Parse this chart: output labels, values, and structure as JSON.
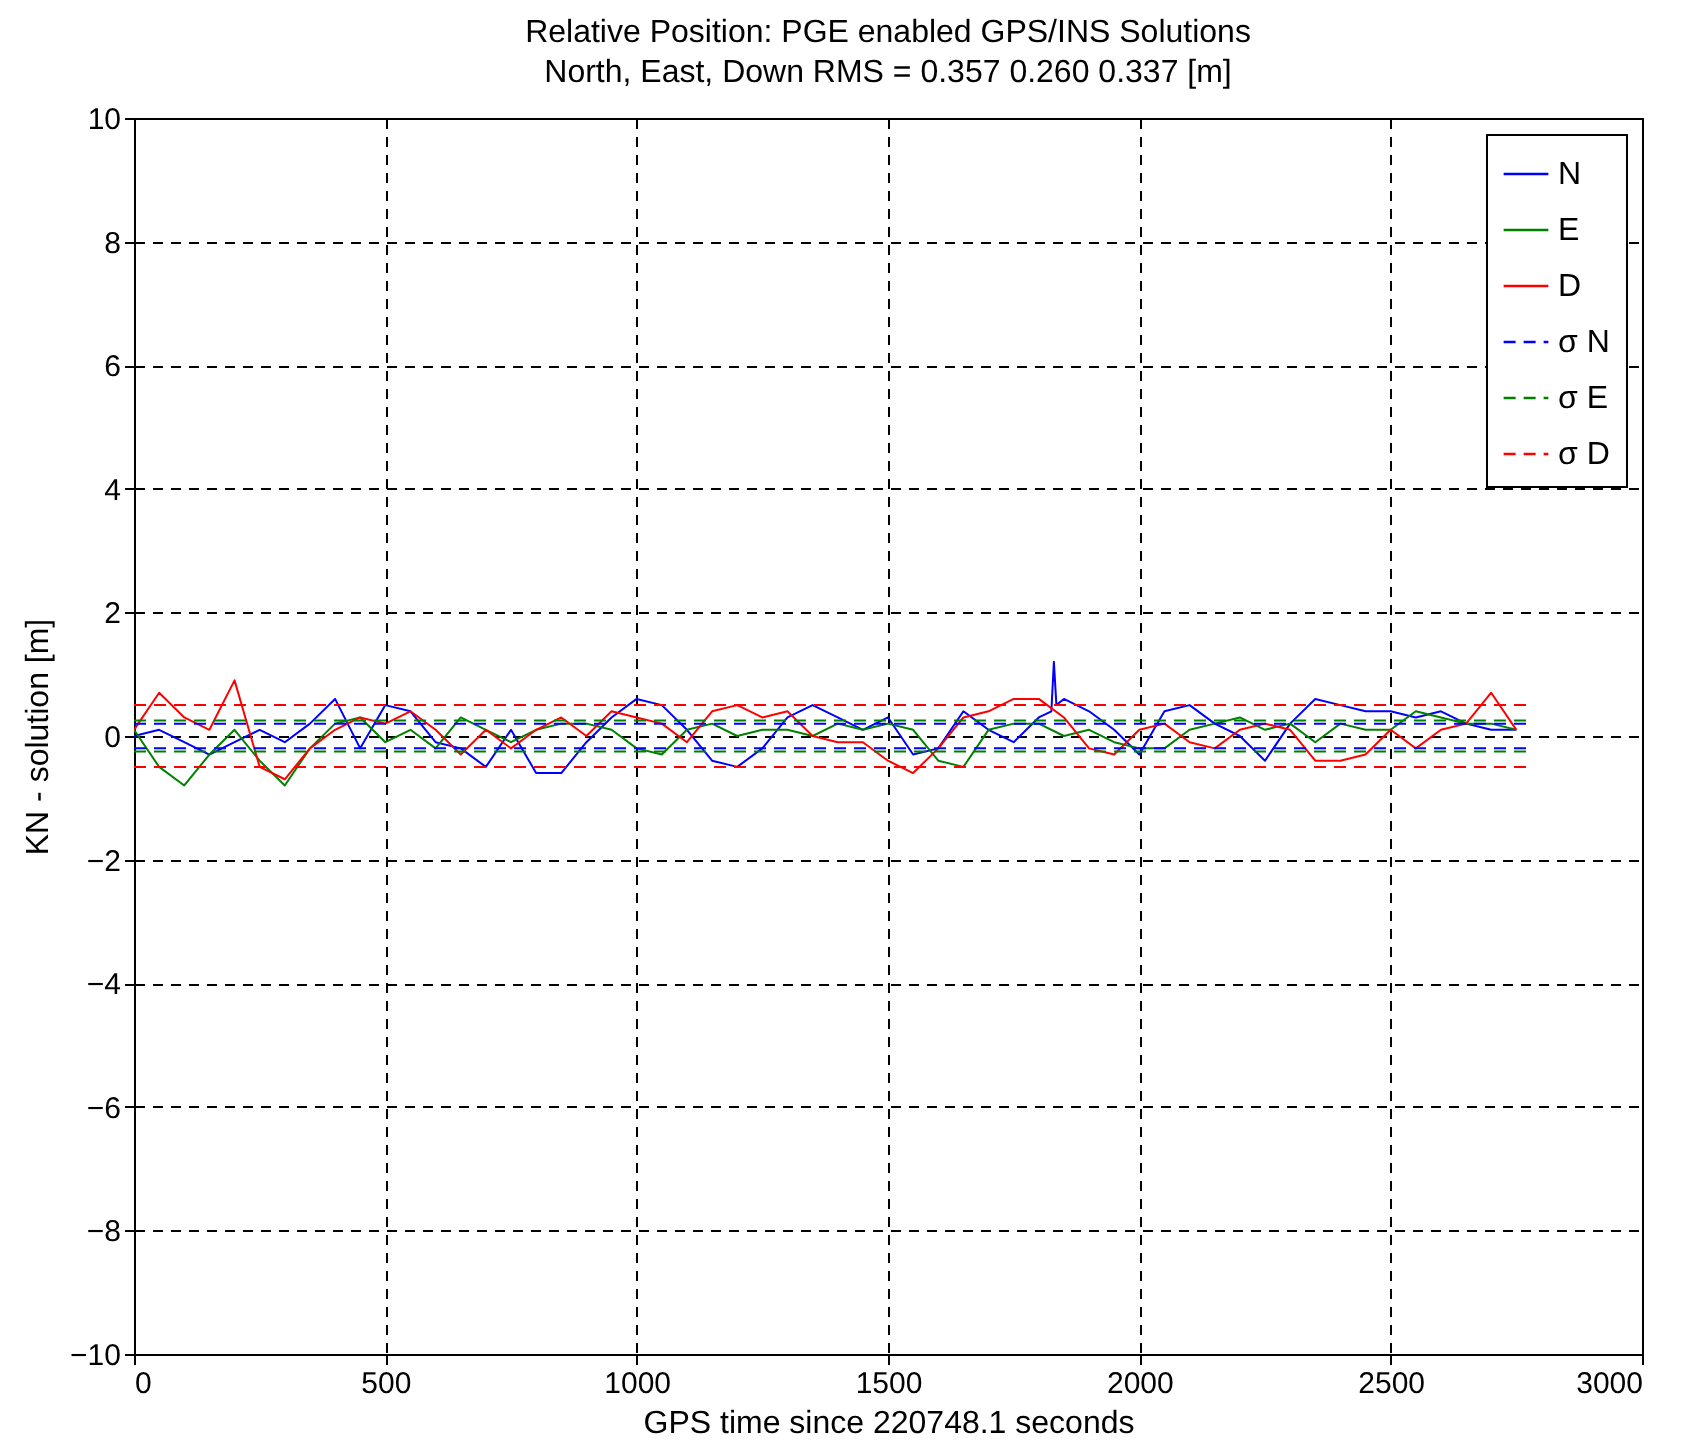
{
  "chart_data": {
    "type": "line",
    "title": "Relative Position: PGE enabled GPS/INS Solutions",
    "subtitle": "North, East, Down RMS = 0.357 0.260 0.337 [m]",
    "xlabel": "GPS time since 220748.1 seconds",
    "ylabel": "KN - solution [m]",
    "x": [
      0,
      50,
      100,
      150,
      200,
      250,
      300,
      350,
      400,
      450,
      500,
      550,
      600,
      650,
      700,
      750,
      800,
      850,
      900,
      950,
      1000,
      1050,
      1100,
      1150,
      1200,
      1250,
      1300,
      1350,
      1400,
      1450,
      1500,
      1550,
      1600,
      1650,
      1700,
      1750,
      1800,
      1850,
      1900,
      1950,
      2000,
      2050,
      2100,
      2150,
      2200,
      2250,
      2300,
      2350,
      2400,
      2450,
      2500,
      2550,
      2600,
      2650,
      2700,
      2750
    ],
    "series": [
      {
        "name": "N",
        "color": "#0000ff",
        "x": [
          0,
          50,
          100,
          150,
          200,
          250,
          300,
          350,
          400,
          450,
          500,
          550,
          600,
          650,
          700,
          750,
          800,
          850,
          900,
          950,
          1000,
          1050,
          1100,
          1150,
          1200,
          1250,
          1300,
          1350,
          1400,
          1450,
          1500,
          1550,
          1600,
          1650,
          1700,
          1750,
          1800,
          1825,
          1830,
          1835,
          1850,
          1900,
          1950,
          2000,
          2050,
          2100,
          2150,
          2200,
          2250,
          2300,
          2350,
          2400,
          2450,
          2500,
          2550,
          2600,
          2650,
          2700,
          2750
        ],
        "values": [
          0,
          0.1,
          -0.1,
          -0.3,
          -0.1,
          0.1,
          -0.1,
          0.2,
          0.6,
          -0.2,
          0.5,
          0.4,
          -0.1,
          -0.2,
          -0.5,
          0.1,
          -0.6,
          -0.6,
          -0.1,
          0.3,
          0.6,
          0.5,
          0.1,
          -0.4,
          -0.5,
          -0.2,
          0.3,
          0.5,
          0.3,
          0.1,
          0.3,
          -0.3,
          -0.2,
          0.4,
          0.1,
          -0.1,
          0.3,
          0.4,
          1.2,
          0.5,
          0.6,
          0.4,
          0.1,
          -0.3,
          0.4,
          0.5,
          0.2,
          0,
          -0.4,
          0.2,
          0.6,
          0.5,
          0.4,
          0.4,
          0.3,
          0.4,
          0.2,
          0.1,
          0.1
        ]
      },
      {
        "name": "E",
        "color": "#008000",
        "values": [
          0.1,
          -0.5,
          -0.8,
          -0.3,
          0.1,
          -0.4,
          -0.8,
          -0.2,
          0.2,
          0.3,
          -0.1,
          0.1,
          -0.2,
          0.3,
          0.1,
          -0.1,
          0.1,
          0.2,
          0.2,
          0.1,
          -0.2,
          -0.3,
          0.1,
          0.2,
          0,
          0.1,
          0.1,
          0,
          0.2,
          0.1,
          0.2,
          0.1,
          -0.4,
          -0.5,
          0.1,
          0.2,
          0.2,
          0,
          0.1,
          -0.1,
          -0.2,
          -0.2,
          0.1,
          0.2,
          0.3,
          0.1,
          0.2,
          -0.1,
          0.2,
          0.1,
          0.1,
          0.4,
          0.3,
          0.2,
          0.2,
          0.1
        ]
      },
      {
        "name": "D",
        "color": "#ff0000",
        "values": [
          0.1,
          0.7,
          0.3,
          0.1,
          0.9,
          -0.5,
          -0.7,
          -0.2,
          0.1,
          0.3,
          0.2,
          0.4,
          0.1,
          -0.3,
          0.1,
          -0.2,
          0.1,
          0.3,
          0,
          0.4,
          0.3,
          0.2,
          -0.1,
          0.4,
          0.5,
          0.3,
          0.4,
          0,
          -0.1,
          -0.1,
          -0.4,
          -0.6,
          -0.2,
          0.3,
          0.4,
          0.6,
          0.6,
          0.3,
          -0.2,
          -0.3,
          0.1,
          0.2,
          -0.1,
          -0.2,
          0.1,
          0.2,
          0.1,
          -0.4,
          -0.4,
          -0.3,
          0.1,
          -0.2,
          0.1,
          0.2,
          0.7,
          0.1
        ]
      },
      {
        "name": "σ N",
        "color": "#0000ff",
        "line_style": "dashed",
        "x": [
          0,
          2770
        ],
        "values": [
          0.2,
          0.2
        ]
      },
      {
        "color": "#0000ff",
        "line_style": "dashed",
        "x": [
          0,
          2770
        ],
        "values": [
          -0.2,
          -0.2
        ]
      },
      {
        "name": "σ E",
        "color": "#008000",
        "line_style": "dashed",
        "x": [
          0,
          2770
        ],
        "values": [
          0.25,
          0.25
        ]
      },
      {
        "color": "#008000",
        "line_style": "dashed",
        "x": [
          0,
          2770
        ],
        "values": [
          -0.25,
          -0.25
        ]
      },
      {
        "name": "σ D",
        "color": "#ff0000",
        "line_style": "dashed",
        "x": [
          0,
          2770
        ],
        "values": [
          0.5,
          0.5
        ]
      },
      {
        "color": "#ff0000",
        "line_style": "dashed",
        "x": [
          0,
          2770
        ],
        "values": [
          -0.5,
          -0.5
        ]
      }
    ],
    "xlim": [
      0,
      3000
    ],
    "xticks": [
      0,
      500,
      1000,
      1500,
      2000,
      2500,
      3000
    ],
    "ylim": [
      -10,
      10
    ],
    "yticks": [
      -10,
      -8,
      -6,
      -4,
      -2,
      0,
      2,
      4,
      6,
      8,
      10
    ],
    "grid": true,
    "legend": "top right",
    "line_style": "solid"
  }
}
